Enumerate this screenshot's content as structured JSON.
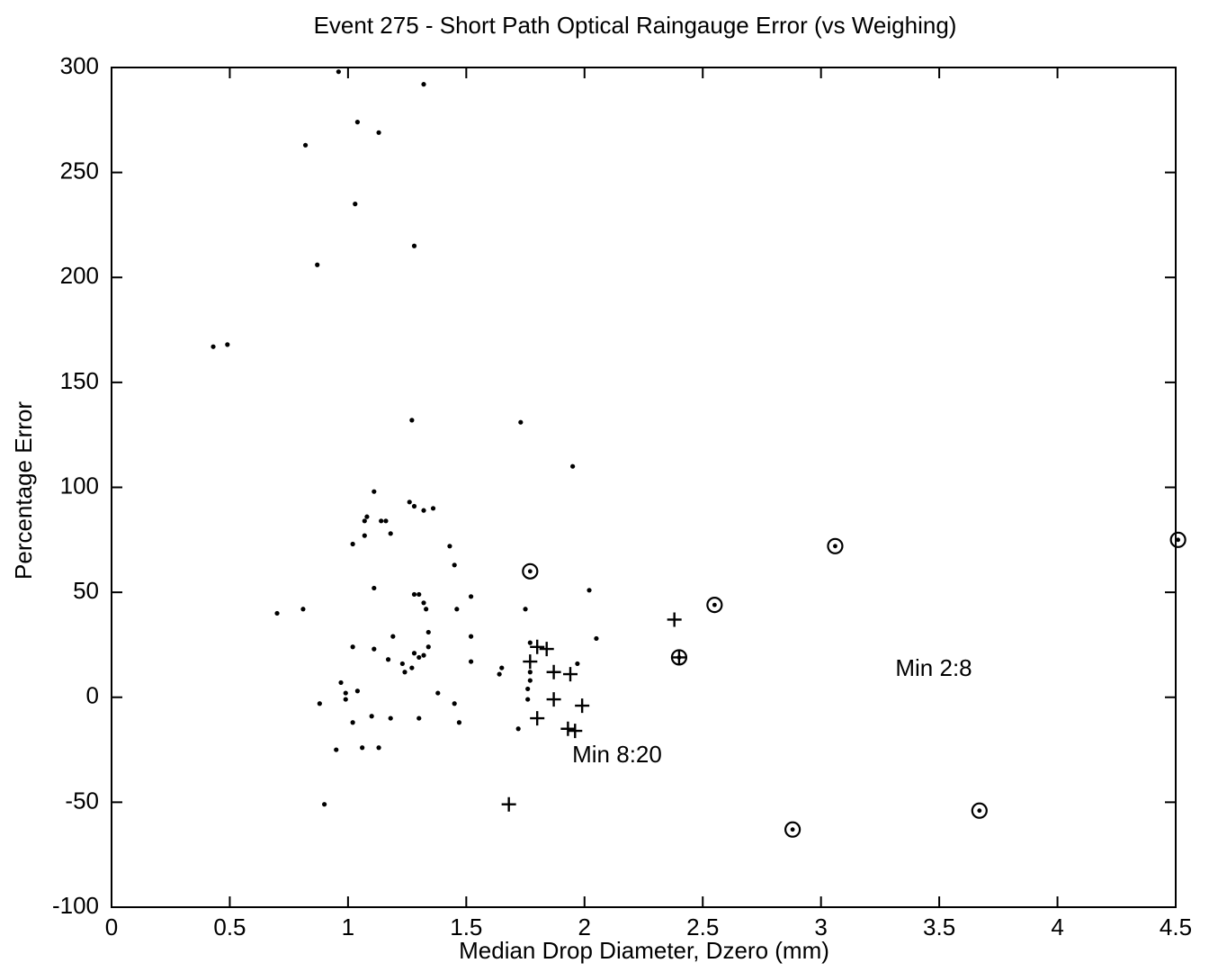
{
  "chart_data": {
    "type": "scatter",
    "title": "Event 275 - Short Path Optical Raingauge Error (vs Weighing)",
    "x_label": "Median Drop Diameter, Dzero (mm)",
    "y_label": "Percentage Error",
    "xlim": [
      0,
      4.5
    ],
    "ylim": [
      -100,
      300
    ],
    "xticks": [
      0,
      0.5,
      1,
      1.5,
      2,
      2.5,
      3,
      3.5,
      4,
      4.5
    ],
    "yticks": [
      -100,
      -50,
      0,
      50,
      100,
      150,
      200,
      250,
      300
    ],
    "annotations": [
      "Min 2:8",
      "Min 8:20"
    ],
    "series": [
      {
        "marker": "dot",
        "color": "#000000",
        "x": [
          0.43,
          0.49,
          0.96,
          0.82,
          1.04,
          1.13,
          1.03,
          0.87,
          1.28,
          1.32,
          1.27,
          1.73,
          1.95,
          1.11,
          1.08,
          1.07,
          1.14,
          1.16,
          1.26,
          1.28,
          1.32,
          1.36,
          1.07,
          1.18,
          1.02,
          1.43,
          1.45,
          0.7,
          0.81,
          1.11,
          1.28,
          1.3,
          1.32,
          1.33,
          1.46,
          1.52,
          1.75,
          2.02,
          2.05,
          1.52,
          1.19,
          1.34,
          1.34,
          1.02,
          1.11,
          1.28,
          1.3,
          1.32,
          1.17,
          1.23,
          1.24,
          1.27,
          1.52,
          1.65,
          1.64,
          1.77,
          1.77,
          1.77,
          1.76,
          1.97,
          0.97,
          0.99,
          0.99,
          1.04,
          0.88,
          1.38,
          1.45,
          1.76,
          1.02,
          1.1,
          1.18,
          1.3,
          1.47,
          1.72,
          0.95,
          1.06,
          1.13,
          0.9
        ],
        "y": [
          167,
          168,
          298,
          263,
          274,
          269,
          235,
          206,
          215,
          292,
          132,
          131,
          110,
          98,
          86,
          84,
          84,
          84,
          93,
          91,
          89,
          90,
          77,
          78,
          73,
          72,
          63,
          40,
          42,
          52,
          49,
          49,
          45,
          42,
          42,
          48,
          42,
          51,
          28,
          29,
          29,
          31,
          24,
          24,
          23,
          21,
          19,
          20,
          18,
          16,
          12,
          14,
          17,
          14,
          11,
          26,
          12,
          8,
          4,
          16,
          7,
          2,
          -1,
          3,
          -3,
          2,
          -3,
          -1,
          -12,
          -9,
          -10,
          -10,
          -12,
          -15,
          -25,
          -24,
          -24,
          -51
        ]
      },
      {
        "marker": "plus",
        "color": "#000000",
        "x": [
          2.38,
          1.77,
          1.8,
          1.84,
          1.87,
          1.94,
          1.87,
          1.99,
          1.8,
          1.93,
          1.96,
          1.68,
          2.4
        ],
        "y": [
          37,
          17,
          24,
          23,
          12,
          11,
          -1,
          -4,
          -10,
          -15,
          -16,
          -51,
          19
        ]
      },
      {
        "marker": "circle",
        "color": "#000000",
        "x": [
          1.77,
          2.55,
          3.06,
          4.51,
          2.4,
          2.88,
          3.67
        ],
        "y": [
          60,
          44,
          72,
          75,
          19,
          -63,
          -54
        ]
      }
    ]
  }
}
